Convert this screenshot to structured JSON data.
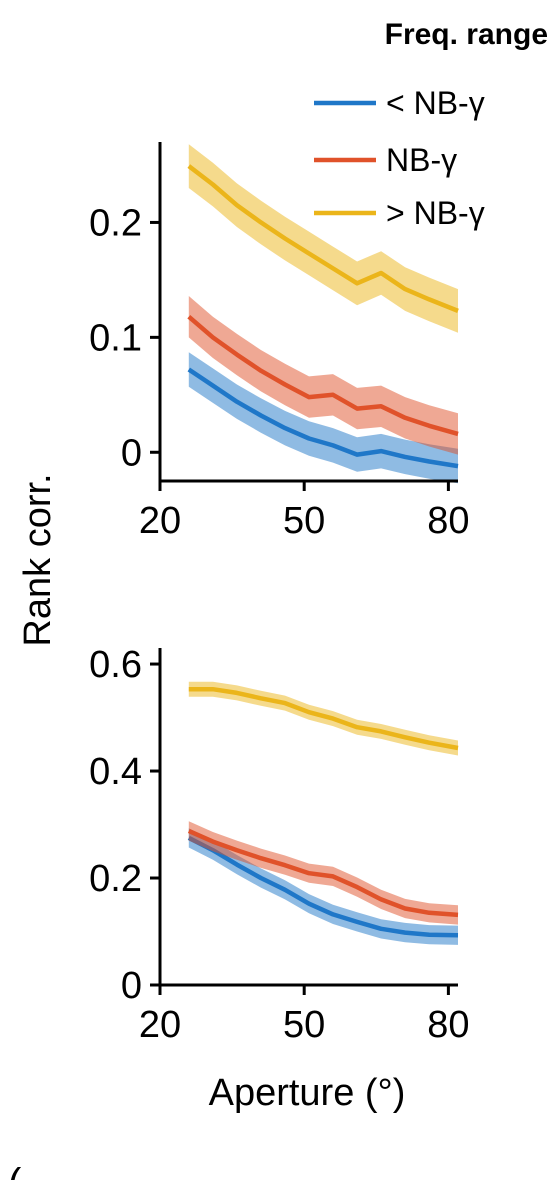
{
  "legend": {
    "title": "Freq. range",
    "placement": "top-right",
    "entries": [
      {
        "label": "< NB-γ",
        "color": "#1f77c8"
      },
      {
        "label": "NB-γ",
        "color": "#e0522a"
      },
      {
        "label": "> NB-γ",
        "color": "#ebb51a"
      }
    ]
  },
  "ylabel": "Rank corr.",
  "xlabel": "Aperture (°)",
  "partial_glyph": "(",
  "chart_data": [
    {
      "type": "line",
      "xlim": [
        20,
        82
      ],
      "ylim": [
        -0.025,
        0.27
      ],
      "x_ticks": [
        20,
        50,
        80
      ],
      "x_tick_labels": [
        "20",
        "50",
        "80"
      ],
      "y_ticks": [
        0,
        0.1,
        0.2
      ],
      "y_tick_labels": [
        "0",
        "0.1",
        "0.2"
      ],
      "x": [
        26,
        31,
        36,
        41,
        46,
        51,
        56,
        61,
        66,
        71,
        76,
        82
      ],
      "series": [
        {
          "color": "#1f77c8",
          "values": [
            0.072,
            0.058,
            0.044,
            0.032,
            0.021,
            0.012,
            0.006,
            -0.002,
            0.001,
            -0.004,
            -0.008,
            -0.012
          ],
          "band": 0.015
        },
        {
          "color": "#e0522a",
          "values": [
            0.118,
            0.1,
            0.085,
            0.071,
            0.059,
            0.048,
            0.05,
            0.038,
            0.04,
            0.03,
            0.023,
            0.016
          ],
          "band": 0.018
        },
        {
          "color": "#ebb51a",
          "values": [
            0.249,
            0.233,
            0.215,
            0.2,
            0.186,
            0.173,
            0.16,
            0.147,
            0.156,
            0.142,
            0.133,
            0.123
          ],
          "band": 0.019
        }
      ]
    },
    {
      "type": "line",
      "xlim": [
        20,
        82
      ],
      "ylim": [
        0,
        0.63
      ],
      "x_ticks": [
        20,
        50,
        80
      ],
      "x_tick_labels": [
        "20",
        "50",
        "80"
      ],
      "y_ticks": [
        0,
        0.2,
        0.4,
        0.6
      ],
      "y_tick_labels": [
        "0",
        "0.2",
        "0.4",
        "0.6"
      ],
      "x": [
        26,
        31,
        36,
        41,
        46,
        51,
        56,
        61,
        66,
        71,
        76,
        82
      ],
      "series": [
        {
          "color": "#1f77c8",
          "values": [
            0.275,
            0.252,
            0.225,
            0.2,
            0.178,
            0.152,
            0.132,
            0.118,
            0.105,
            0.098,
            0.094,
            0.093
          ],
          "band": 0.018
        },
        {
          "color": "#e0522a",
          "values": [
            0.288,
            0.268,
            0.252,
            0.237,
            0.224,
            0.209,
            0.203,
            0.183,
            0.16,
            0.143,
            0.135,
            0.131
          ],
          "band": 0.018
        },
        {
          "color": "#ebb51a",
          "values": [
            0.553,
            0.553,
            0.546,
            0.536,
            0.527,
            0.51,
            0.498,
            0.482,
            0.474,
            0.463,
            0.453,
            0.443
          ],
          "band": 0.014
        }
      ]
    }
  ]
}
